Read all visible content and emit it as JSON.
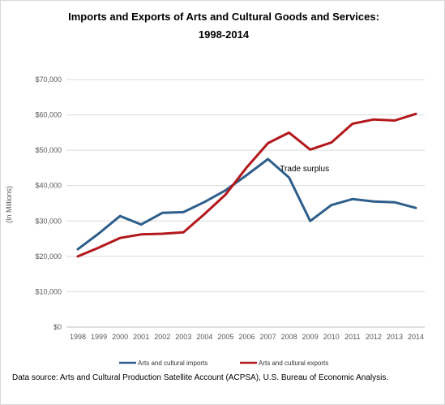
{
  "chart_data": {
    "type": "line",
    "title": "Imports and Exports of Arts and Cultural Goods and Services:",
    "subtitle": "1998-2014",
    "xlabel": "",
    "ylabel": "(In Millions)",
    "categories": [
      "1998",
      "1999",
      "2000",
      "2001",
      "2002",
      "2003",
      "2004",
      "2005",
      "2006",
      "2007",
      "2008",
      "2009",
      "2010",
      "2011",
      "2012",
      "2013",
      "2014"
    ],
    "ylim": [
      0,
      70000
    ],
    "yticks": [
      0,
      10000,
      20000,
      30000,
      40000,
      50000,
      60000,
      70000
    ],
    "ytick_labels": [
      "$0",
      "$10,000",
      "$20,000",
      "$30,000",
      "$40,000",
      "$50,000",
      "$60,000",
      "$70,000"
    ],
    "grid": "horizontal",
    "legend_position": "bottom",
    "series": [
      {
        "name": "Arts and cultural imports",
        "color": "#2e5f8a",
        "values": [
          22000,
          26500,
          31400,
          29000,
          32300,
          32500,
          35400,
          38700,
          43000,
          47500,
          42300,
          30000,
          34500,
          36200,
          35500,
          35300,
          33700
        ]
      },
      {
        "name": "Arts and cultural exports",
        "color": "#b2181c",
        "values": [
          20000,
          22500,
          25200,
          26200,
          26400,
          26800,
          32000,
          37500,
          45200,
          52000,
          55000,
          50200,
          52200,
          57500,
          58700,
          58400,
          60300
        ]
      }
    ],
    "annotations": [
      {
        "text": "Trade surplus",
        "x": "2009",
        "y": 45000
      }
    ]
  },
  "source_note": "Data source:  Arts and Cultural Production  Satellite Account (ACPSA), U.S. Bureau of Economic Analysis."
}
